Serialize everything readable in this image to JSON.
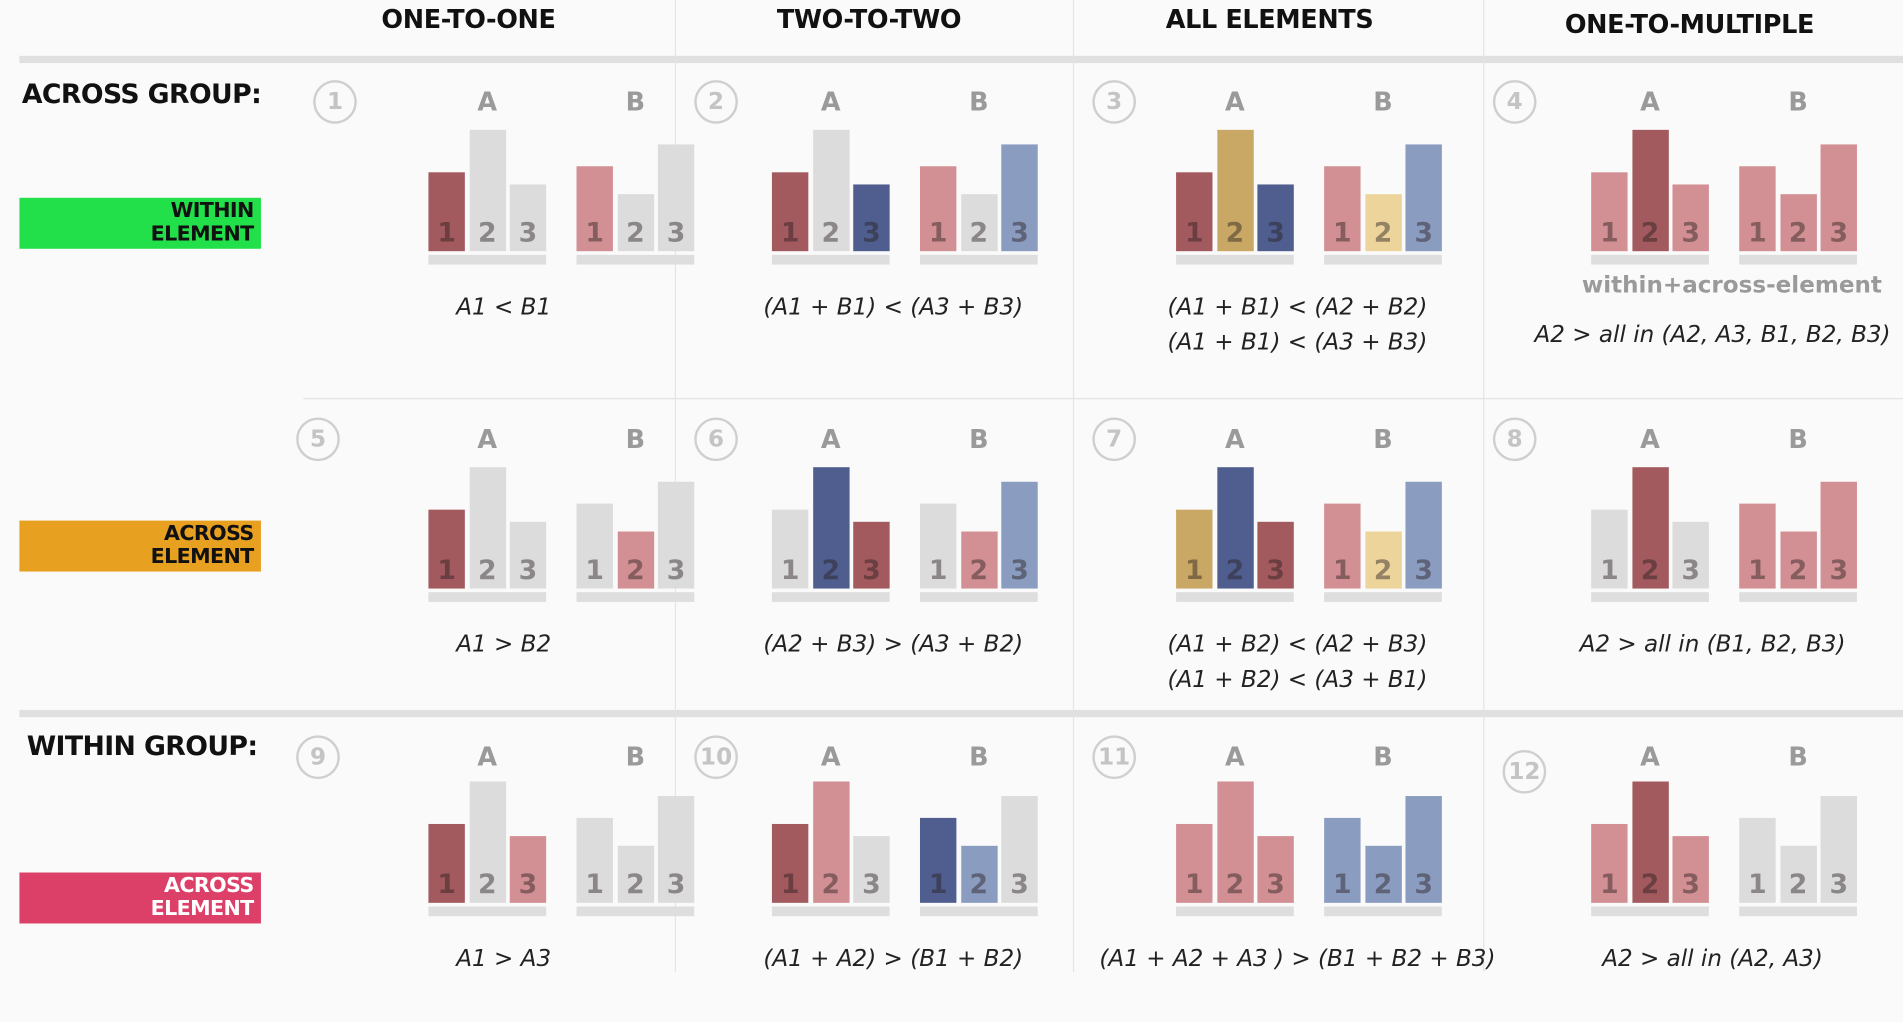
{
  "columns": [
    "ONE-TO-ONE",
    "TWO-TO-TWO",
    "ALL ELEMENTS",
    "ONE-TO-MULTIPLE"
  ],
  "row_labels": {
    "across_group": "ACROSS GROUP:",
    "within_group": "WITHIN GROUP:"
  },
  "tags": [
    {
      "line1": "WITHIN",
      "line2": "ELEMENT",
      "color": "#22e04a",
      "text_color": "#111111"
    },
    {
      "line1": "ACROSS",
      "line2": "ELEMENT",
      "color": "#e8a020",
      "text_color": "#111111"
    },
    {
      "line1": "ACROSS",
      "line2": "ELEMENT",
      "color": "#dc4068",
      "text_color": "#ffffff"
    }
  ],
  "palette": {
    "dark_red": "#a35a5e",
    "light_red": "#d39094",
    "gray": "#dcdcdc",
    "dark_blue": "#4f5e8e",
    "light_blue": "#8b9cc1",
    "gold": "#c9a765",
    "light_gold": "#ecd49b"
  },
  "group_labels": [
    "A",
    "B"
  ],
  "bar_labels": [
    "1",
    "2",
    "3"
  ],
  "bar_values": {
    "A": [
      65,
      100,
      55
    ],
    "B": [
      70,
      47,
      88
    ]
  },
  "cells": [
    {
      "number": "1",
      "colors": [
        "dark_red",
        "gray",
        "gray",
        "light_red",
        "gray",
        "gray"
      ],
      "formula": [
        "A1 < B1"
      ]
    },
    {
      "number": "2",
      "colors": [
        "dark_red",
        "gray",
        "dark_blue",
        "light_red",
        "gray",
        "light_blue"
      ],
      "formula": [
        "(A1 + B1) < (A3 + B3)"
      ]
    },
    {
      "number": "3",
      "colors": [
        "dark_red",
        "gold",
        "dark_blue",
        "light_red",
        "light_gold",
        "light_blue"
      ],
      "formula": [
        "(A1 + B1) < (A2  + B2)",
        "(A1 + B1) < (A3 + B3)"
      ]
    },
    {
      "number": "4",
      "colors": [
        "light_red",
        "dark_red",
        "light_red",
        "light_red",
        "light_red",
        "light_red"
      ],
      "subtitle": "within+across-element",
      "formula": [
        "A2 > all in (A2, A3, B1, B2, B3)"
      ]
    },
    {
      "number": "5",
      "colors": [
        "dark_red",
        "gray",
        "gray",
        "gray",
        "light_red",
        "gray"
      ],
      "formula": [
        "A1 > B2"
      ]
    },
    {
      "number": "6",
      "colors": [
        "gray",
        "dark_blue",
        "dark_red",
        "gray",
        "light_red",
        "light_blue"
      ],
      "formula": [
        "(A2 + B3) > (A3 + B2)"
      ]
    },
    {
      "number": "7",
      "colors": [
        "gold",
        "dark_blue",
        "dark_red",
        "light_red",
        "light_gold",
        "light_blue"
      ],
      "formula": [
        "(A1 + B2) < (A2  + B3)",
        "(A1 + B2) < (A3 + B1)"
      ]
    },
    {
      "number": "8",
      "colors": [
        "gray",
        "dark_red",
        "gray",
        "light_red",
        "light_red",
        "light_red"
      ],
      "formula": [
        "A2 > all in (B1, B2, B3)"
      ]
    },
    {
      "number": "9",
      "colors": [
        "dark_red",
        "gray",
        "light_red",
        "gray",
        "gray",
        "gray"
      ],
      "formula": [
        "A1 > A3"
      ]
    },
    {
      "number": "10",
      "colors": [
        "dark_red",
        "light_red",
        "gray",
        "dark_blue",
        "light_blue",
        "gray"
      ],
      "formula": [
        "(A1 + A2) > (B1 + B2)"
      ]
    },
    {
      "number": "11",
      "colors": [
        "light_red",
        "light_red",
        "light_red",
        "light_blue",
        "light_blue",
        "light_blue"
      ],
      "formula": [
        "(A1 + A2 + A3 ) > (B1 + B2 + B3)"
      ]
    },
    {
      "number": "12",
      "colors": [
        "light_red",
        "dark_red",
        "light_red",
        "gray",
        "gray",
        "gray"
      ],
      "formula": [
        "A2 > all in (A2, A3)"
      ]
    }
  ]
}
